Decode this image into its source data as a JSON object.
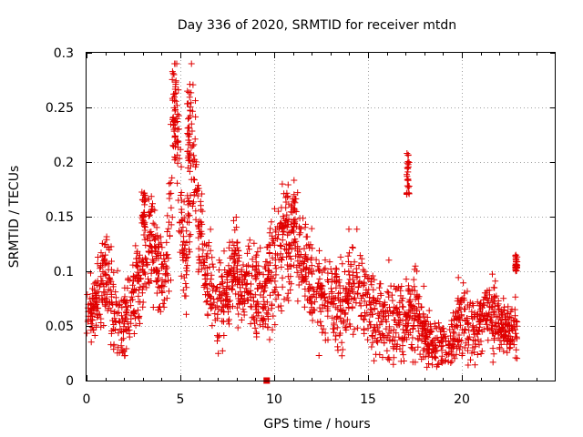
{
  "chart_data": {
    "type": "scatter",
    "title": "Day 336 of 2020, SRMTID for receiver mtdn",
    "xlabel": "GPS time / hours",
    "ylabel": "SRMTID / TECUs",
    "xlim": [
      0,
      25
    ],
    "ylim": [
      0,
      0.3
    ],
    "xticks": [
      0,
      5,
      10,
      15,
      20
    ],
    "xtick_labels": [
      "0",
      "5",
      "10",
      "15",
      "20"
    ],
    "yticks": [
      0,
      0.05,
      0.1,
      0.15,
      0.2,
      0.25,
      0.3
    ],
    "ytick_labels": [
      "0",
      "0.05",
      "0.1",
      "0.15",
      "0.2",
      "0.25",
      "0.3"
    ],
    "grid": true,
    "marker": "plus",
    "color": "#e00000",
    "profile": [
      [
        0.0,
        0.07,
        0.012
      ],
      [
        0.5,
        0.065,
        0.015
      ],
      [
        1.0,
        0.1,
        0.025
      ],
      [
        1.5,
        0.06,
        0.02
      ],
      [
        2.0,
        0.05,
        0.02
      ],
      [
        2.5,
        0.08,
        0.02
      ],
      [
        3.0,
        0.1,
        0.02
      ],
      [
        3.3,
        0.13,
        0.025
      ],
      [
        3.8,
        0.1,
        0.02
      ],
      [
        4.2,
        0.09,
        0.015
      ],
      [
        4.6,
        0.2,
        0.04
      ],
      [
        4.8,
        0.25,
        0.03
      ],
      [
        5.0,
        0.15,
        0.03
      ],
      [
        5.3,
        0.11,
        0.02
      ],
      [
        5.6,
        0.23,
        0.04
      ],
      [
        5.9,
        0.17,
        0.03
      ],
      [
        6.2,
        0.11,
        0.02
      ],
      [
        6.6,
        0.08,
        0.02
      ],
      [
        7.0,
        0.065,
        0.02
      ],
      [
        7.5,
        0.09,
        0.02
      ],
      [
        8.0,
        0.1,
        0.02
      ],
      [
        8.5,
        0.09,
        0.02
      ],
      [
        9.0,
        0.08,
        0.02
      ],
      [
        9.5,
        0.08,
        0.02
      ],
      [
        10.0,
        0.1,
        0.03
      ],
      [
        10.5,
        0.13,
        0.025
      ],
      [
        11.0,
        0.13,
        0.025
      ],
      [
        11.5,
        0.11,
        0.02
      ],
      [
        12.0,
        0.09,
        0.02
      ],
      [
        12.5,
        0.08,
        0.02
      ],
      [
        13.0,
        0.075,
        0.02
      ],
      [
        13.5,
        0.065,
        0.02
      ],
      [
        14.0,
        0.08,
        0.02
      ],
      [
        14.5,
        0.085,
        0.02
      ],
      [
        15.0,
        0.07,
        0.02
      ],
      [
        15.5,
        0.06,
        0.02
      ],
      [
        16.0,
        0.055,
        0.02
      ],
      [
        16.5,
        0.05,
        0.02
      ],
      [
        17.0,
        0.055,
        0.02
      ],
      [
        17.5,
        0.06,
        0.02
      ],
      [
        18.0,
        0.045,
        0.015
      ],
      [
        18.5,
        0.035,
        0.012
      ],
      [
        19.0,
        0.03,
        0.012
      ],
      [
        19.5,
        0.035,
        0.012
      ],
      [
        20.0,
        0.06,
        0.02
      ],
      [
        20.5,
        0.045,
        0.015
      ],
      [
        21.0,
        0.055,
        0.015
      ],
      [
        21.5,
        0.06,
        0.02
      ],
      [
        22.0,
        0.05,
        0.015
      ],
      [
        22.5,
        0.045,
        0.012
      ],
      [
        22.9,
        0.05,
        0.012
      ]
    ],
    "bursts": [
      [
        4.55,
        4.85,
        0.2,
        0.285
      ],
      [
        5.35,
        5.55,
        0.2,
        0.275
      ],
      [
        17.05,
        17.2,
        0.17,
        0.21
      ],
      [
        10.6,
        11.2,
        0.14,
        0.17
      ],
      [
        22.85,
        22.95,
        0.1,
        0.115
      ],
      [
        2.95,
        3.15,
        0.14,
        0.175
      ]
    ],
    "marker_square": {
      "x": 9.6,
      "y": 0
    },
    "point_count": 2200
  }
}
